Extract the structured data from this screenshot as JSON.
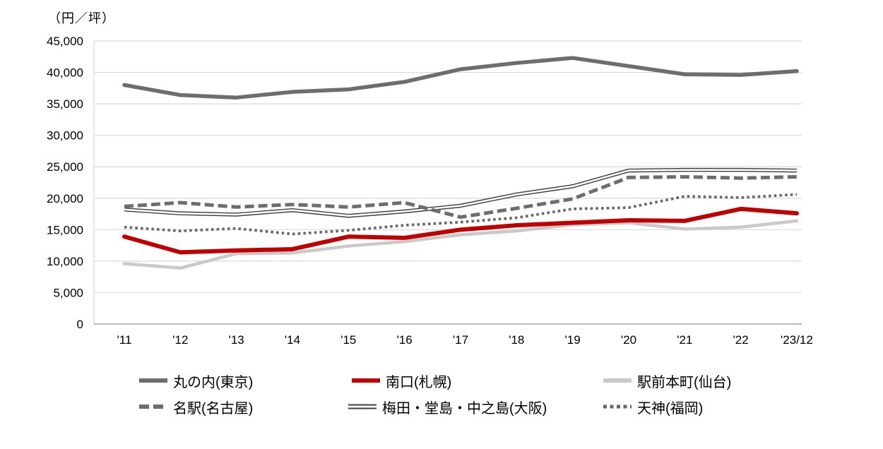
{
  "chart_data": {
    "type": "line",
    "title": "（円／坪）",
    "xlabel": "",
    "ylabel": "（円／坪）",
    "x_categories": [
      "'11",
      "'12",
      "'13",
      "'14",
      "'15",
      "'16",
      "'17",
      "'18",
      "'19",
      "'20",
      "'21",
      "'22",
      "'23/12"
    ],
    "y_axis": {
      "min": 0,
      "max": 45000,
      "step": 5000,
      "tick_labels": [
        "0",
        "5,000",
        "10,000",
        "15,000",
        "20,000",
        "25,000",
        "30,000",
        "35,000",
        "40,000",
        "45,000"
      ]
    },
    "grid": "horizontal",
    "legend_position": "bottom",
    "series": [
      {
        "name": "丸の内(東京)",
        "style": "solid-thick",
        "color": "#6d6d6d",
        "values": [
          38000,
          36400,
          36000,
          36900,
          37300,
          38500,
          40500,
          41500,
          42300,
          41000,
          39700,
          39600,
          40200
        ]
      },
      {
        "name": "南口(札幌)",
        "style": "solid-thick",
        "color": "#c00000",
        "values": [
          13900,
          11400,
          11700,
          11900,
          13900,
          13700,
          15000,
          15700,
          16100,
          16500,
          16400,
          18300,
          17600
        ]
      },
      {
        "name": "駅前本町(仙台)",
        "style": "solid-thick",
        "color": "#c9c9c9",
        "values": [
          9600,
          8900,
          11200,
          11300,
          12400,
          13100,
          14200,
          14800,
          15800,
          16100,
          15100,
          15400,
          16400
        ]
      },
      {
        "name": "名駅(名古屋)",
        "style": "dashed",
        "color": "#6d6d6d",
        "values": [
          18700,
          19300,
          18600,
          19000,
          18600,
          19300,
          17000,
          18400,
          19900,
          23300,
          23400,
          23200,
          23400
        ]
      },
      {
        "name": "梅田・堂島・中之島(大阪)",
        "style": "double",
        "color": "#404040",
        "values": [
          18200,
          17600,
          17400,
          18100,
          17200,
          17900,
          18800,
          20600,
          21900,
          24400,
          24500,
          24500,
          24400
        ]
      },
      {
        "name": "天神(福岡)",
        "style": "dotted",
        "color": "#666666",
        "values": [
          15400,
          14800,
          15200,
          14300,
          14900,
          15700,
          16200,
          16900,
          18300,
          18500,
          20300,
          20100,
          20600
        ]
      }
    ]
  },
  "colors": {
    "gridline": "#d9d9d9",
    "axis_line": "#a6a6a6",
    "text": "#000000",
    "background": "#ffffff",
    "accent_red": "#c00000"
  }
}
